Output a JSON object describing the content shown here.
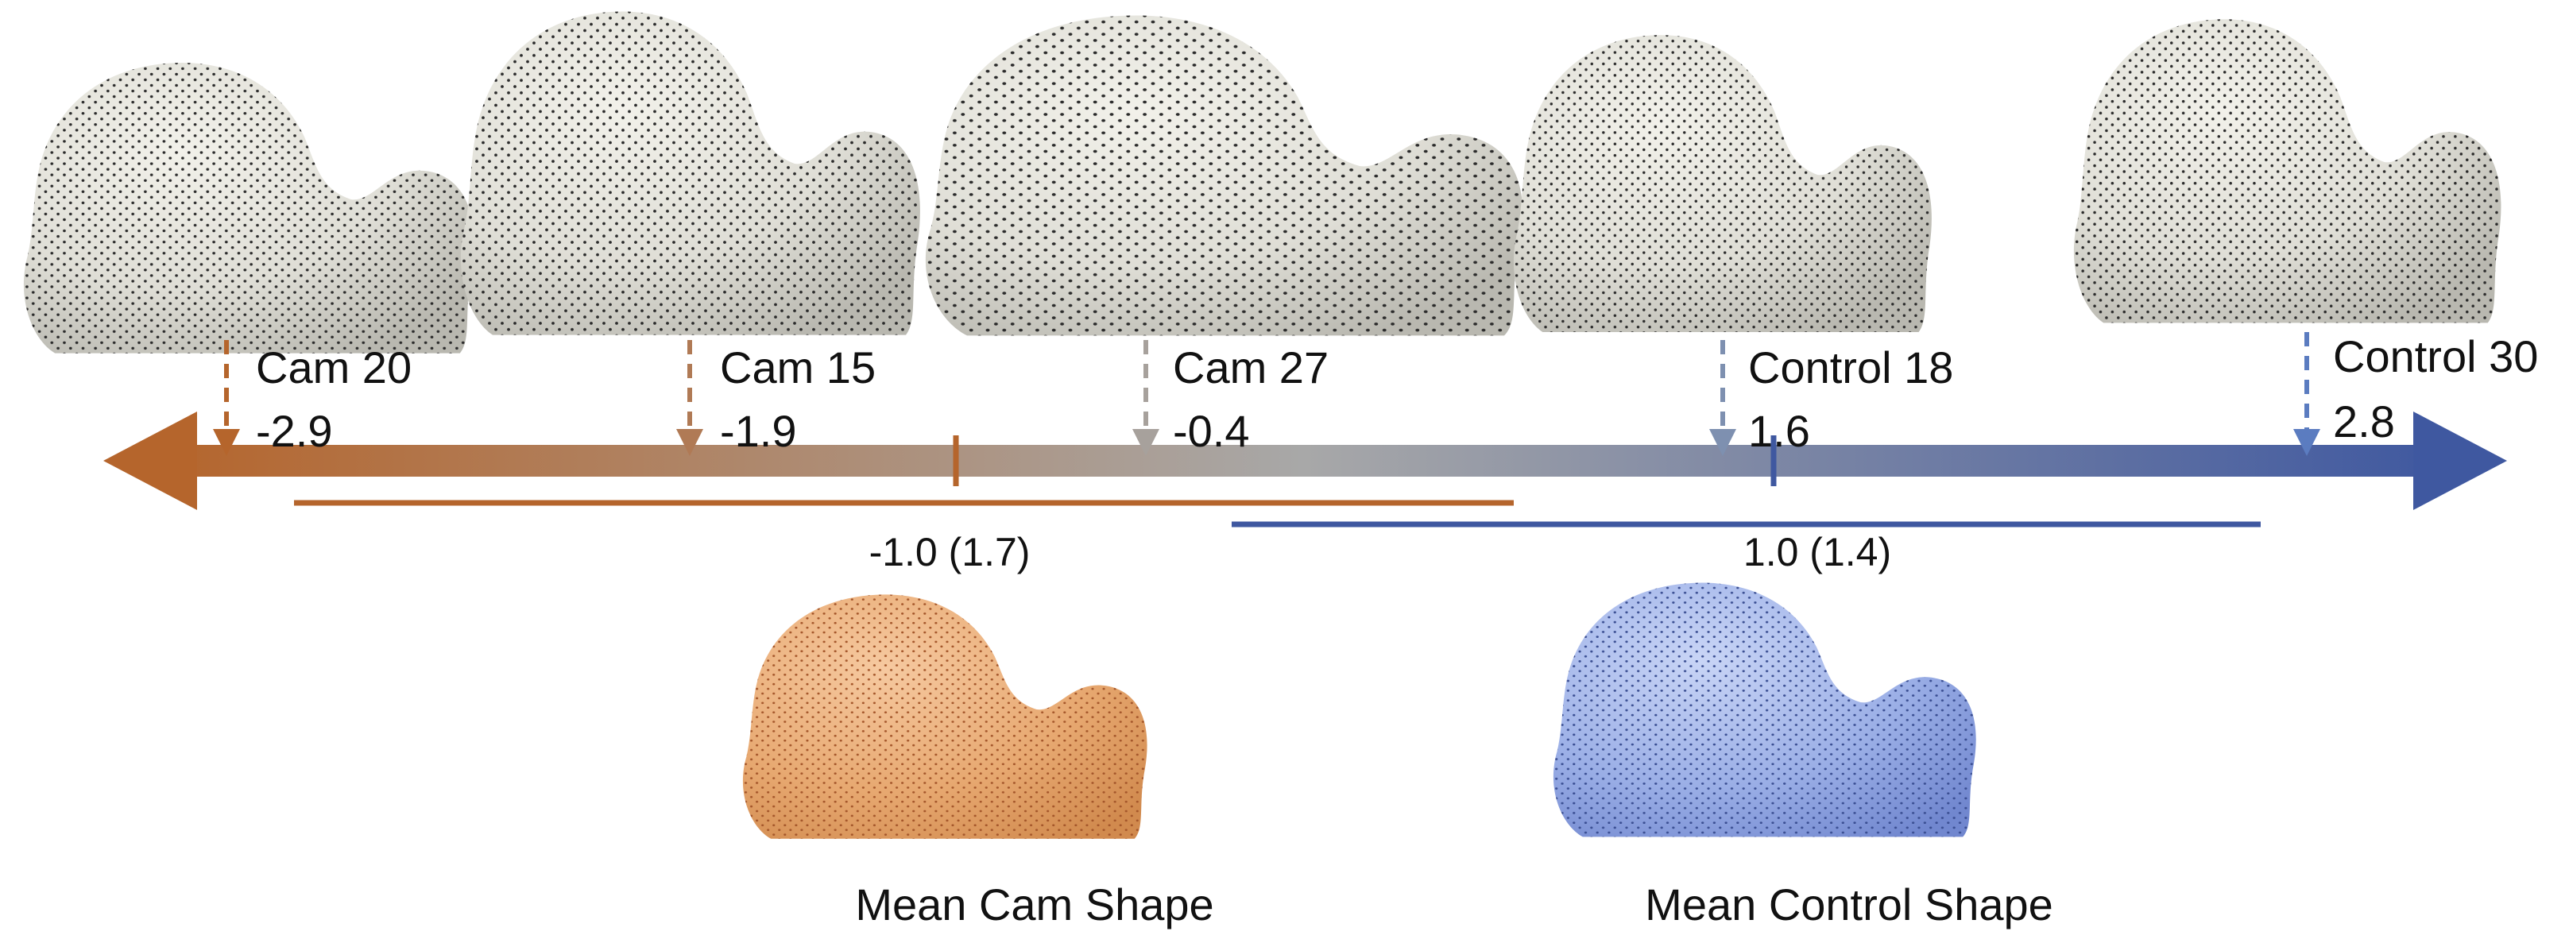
{
  "colors": {
    "cam": "#B5652C",
    "control": "#3F58A0",
    "middle": "#A8A8A8",
    "bone": "#E9E8E0",
    "bone_shade": "#BDBCB4",
    "dot": "#2b2b2b",
    "cam_fill": "#E7A870",
    "control_fill": "#8FA6E3"
  },
  "specimens": [
    {
      "name": "Cam 20",
      "value": "-2.9",
      "group": "cam"
    },
    {
      "name": "Cam 15",
      "value": "-1.9",
      "group": "cam"
    },
    {
      "name": "Cam 27",
      "value": "-0.4",
      "group": "cam"
    },
    {
      "name": "Control 18",
      "value": "1.6",
      "group": "control"
    },
    {
      "name": "Control 30",
      "value": "2.8",
      "group": "control"
    }
  ],
  "group_stats": {
    "cam": {
      "label": "-1.0 (1.7)",
      "mean": -1.0,
      "sd": 1.7
    },
    "control": {
      "label": "1.0 (1.4)",
      "mean": 1.0,
      "sd": 1.4
    }
  },
  "mean_shapes": {
    "cam_label": "Mean Cam Shape",
    "control_label": "Mean Control Shape"
  }
}
